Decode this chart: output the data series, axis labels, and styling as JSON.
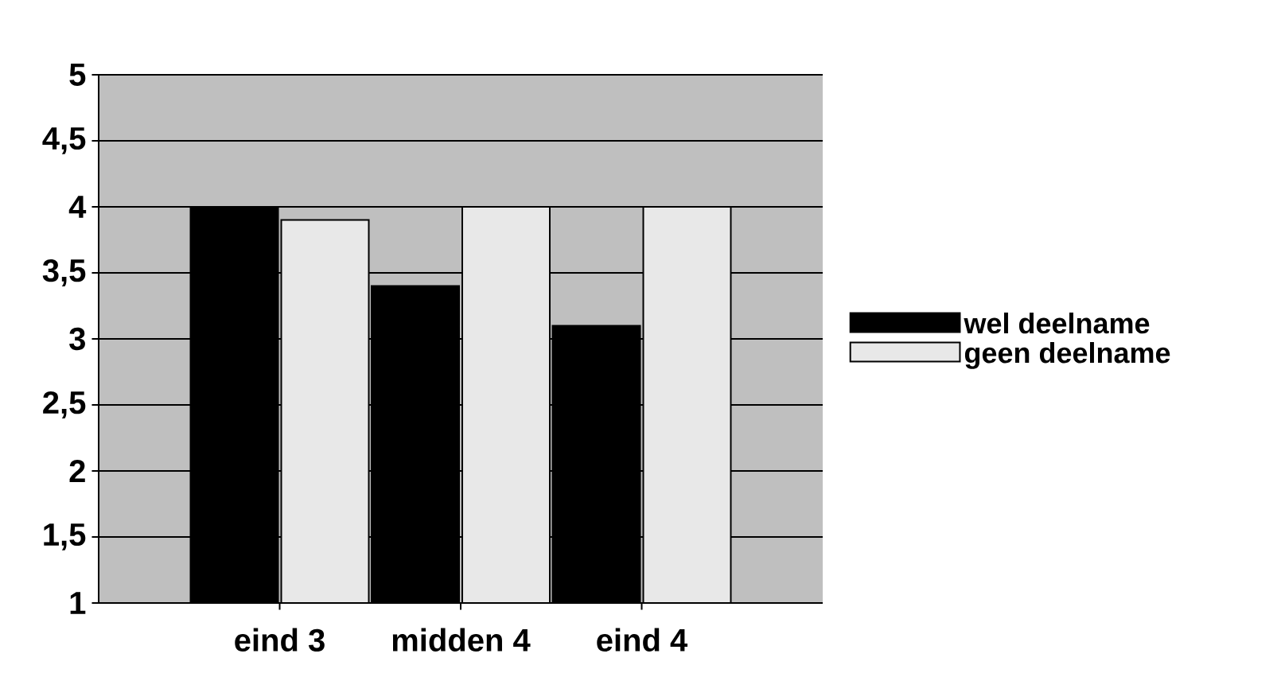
{
  "chart_data": {
    "type": "bar",
    "categories": [
      "eind 3",
      "midden 4",
      "eind 4"
    ],
    "series": [
      {
        "name": "wel deelname",
        "color": "#000000",
        "values": [
          4.0,
          3.4,
          3.1
        ]
      },
      {
        "name": "geen deelname",
        "color": "#e8e8e8",
        "values": [
          3.9,
          4.0,
          4.0
        ]
      }
    ],
    "ylim": [
      1,
      5
    ],
    "yticks": [
      1,
      {
        "value": 1.5,
        "label": "1,5"
      },
      2,
      {
        "value": 2.5,
        "label": "2,5"
      },
      3,
      {
        "value": 3.5,
        "label": "3,5"
      },
      4,
      {
        "value": 4.5,
        "label": "4,5"
      },
      5
    ],
    "grid": "y",
    "legend": "right"
  }
}
